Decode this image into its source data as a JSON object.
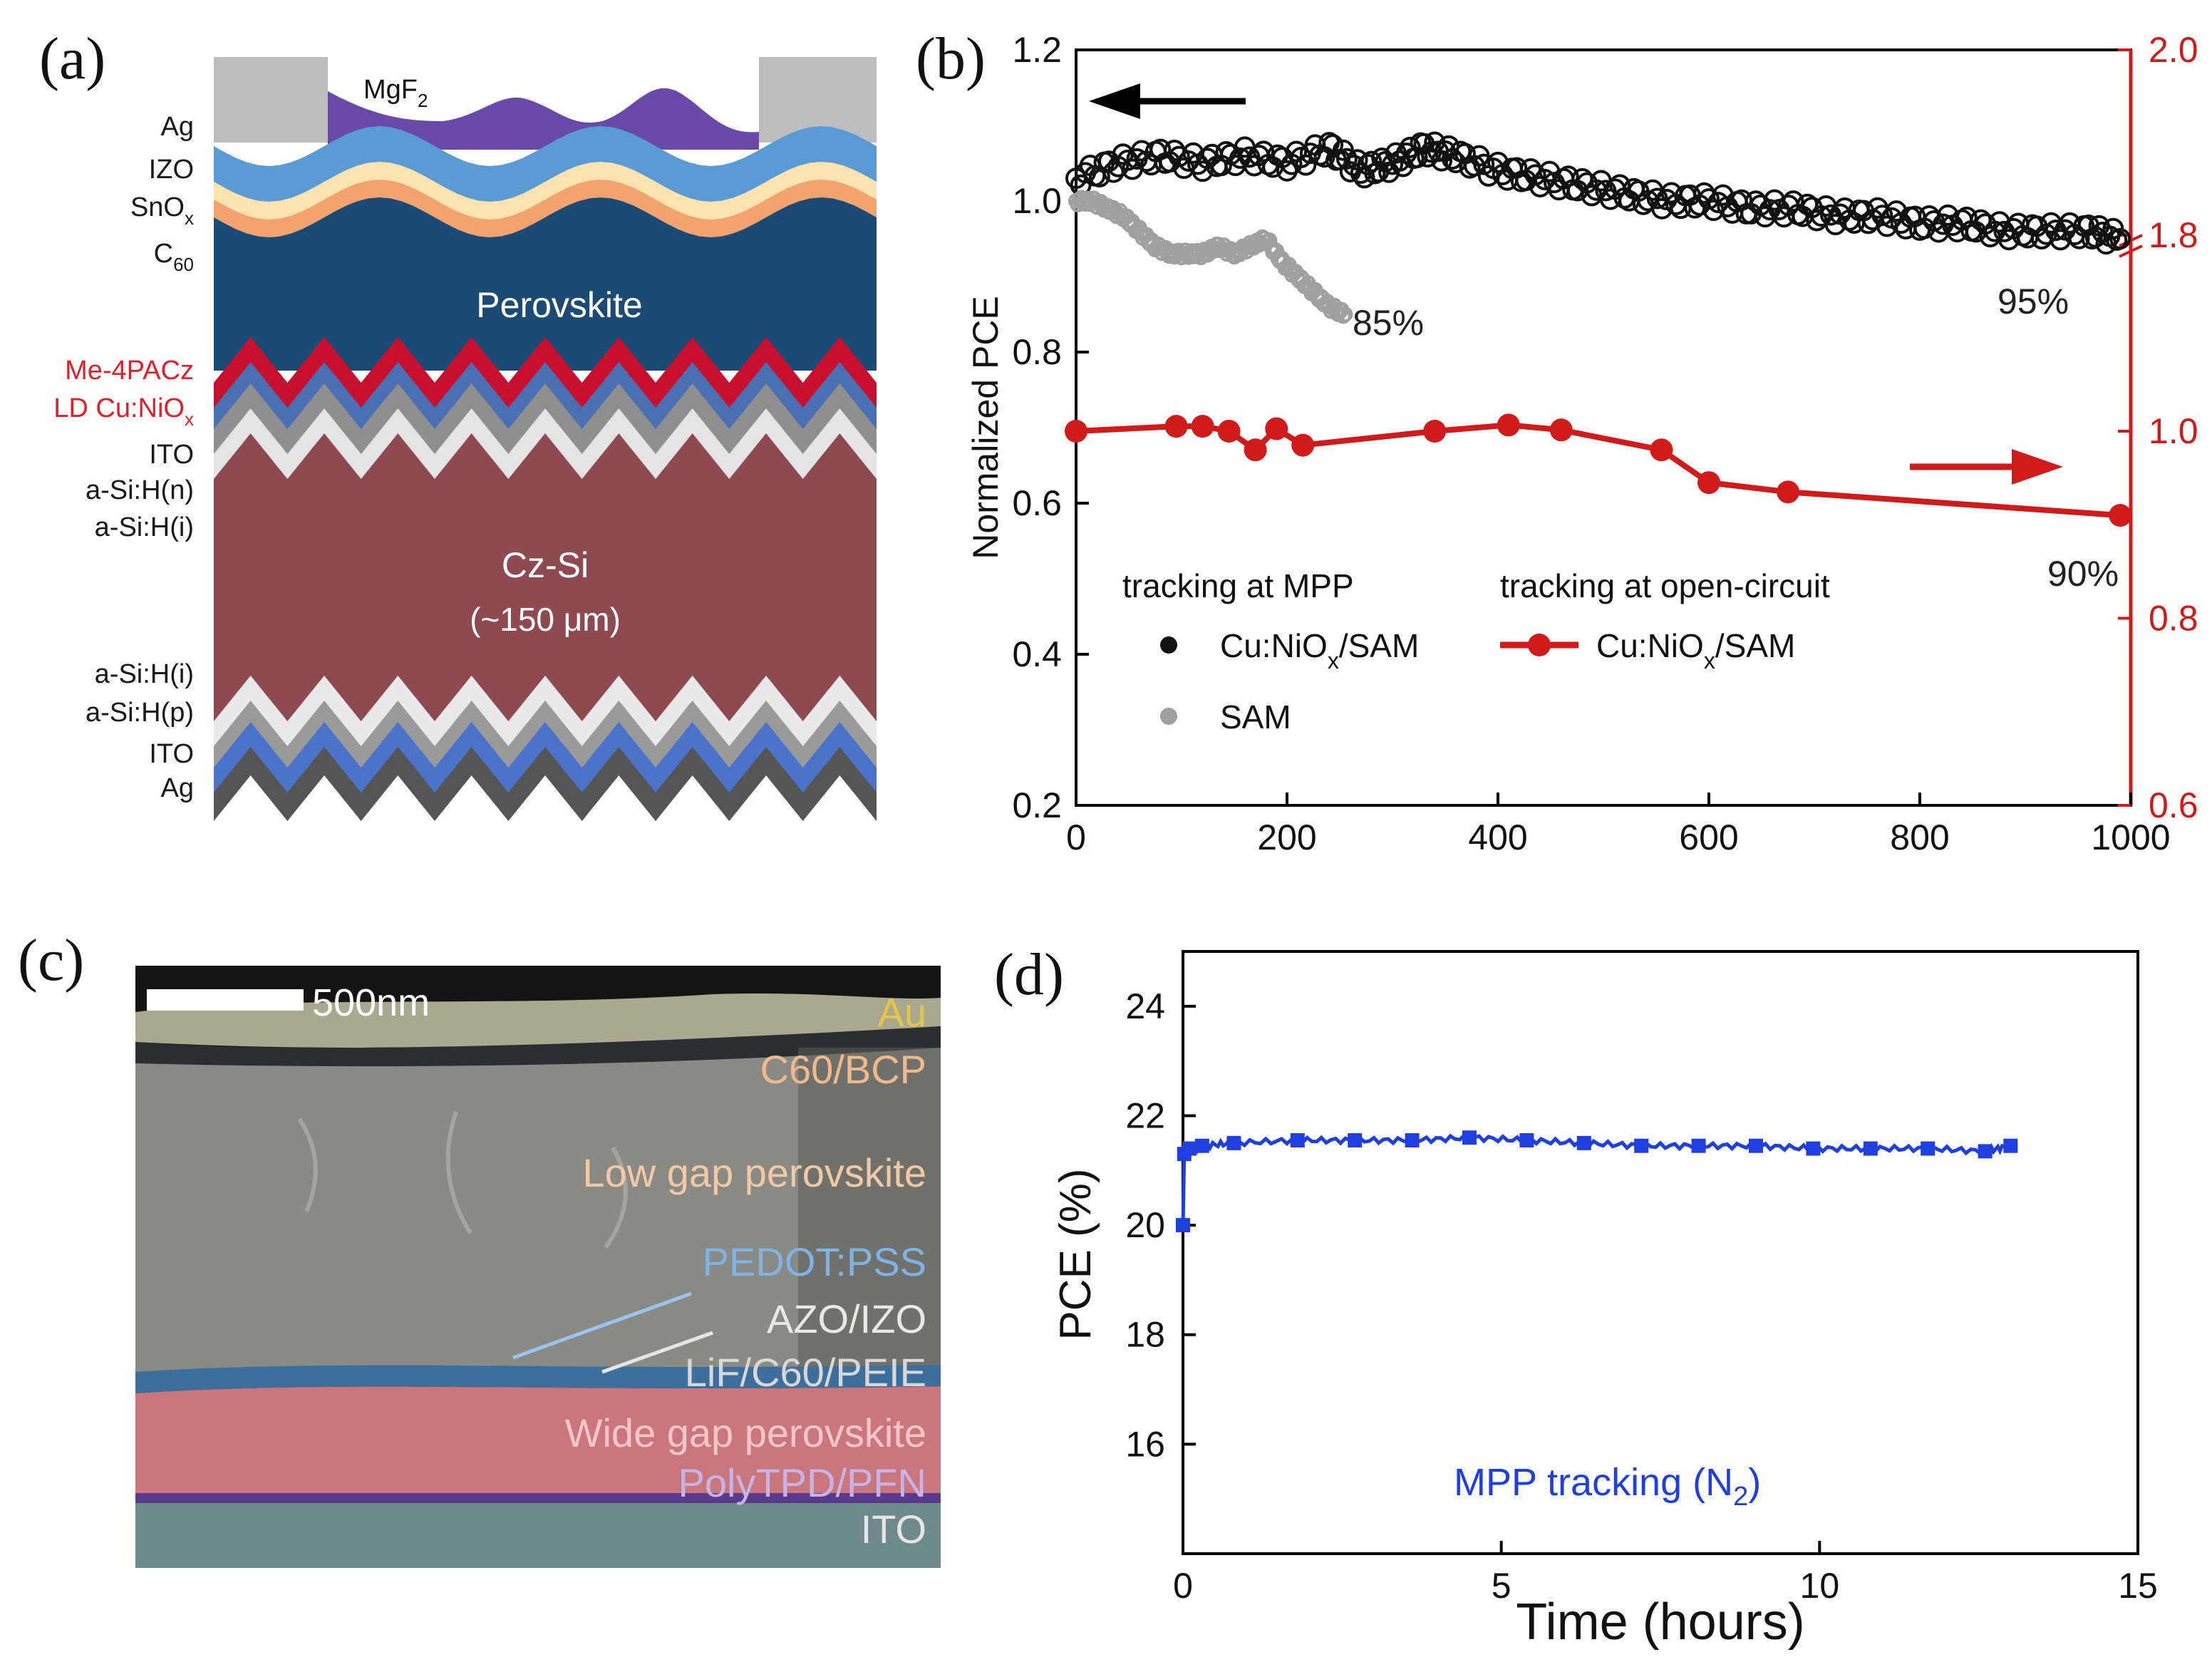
{
  "panels": {
    "a": {
      "label": "(a)",
      "left_labels": [
        {
          "text": "Ag",
          "color": "#1a1a1a"
        },
        {
          "text": "IZO",
          "color": "#1a1a1a"
        },
        {
          "text": "SnO",
          "sub": "x",
          "color": "#1a1a1a"
        },
        {
          "text": "C",
          "sub": "60",
          "color": "#1a1a1a"
        },
        {
          "text": "Me-4PACz",
          "color": "#e0202a"
        },
        {
          "text": "LD Cu:NiO",
          "sub": "x",
          "color": "#e0202a"
        },
        {
          "text": "ITO",
          "color": "#1a1a1a"
        },
        {
          "text": "a-Si:H(n)",
          "color": "#1a1a1a"
        },
        {
          "text": "a-Si:H(i)",
          "color": "#1a1a1a"
        },
        {
          "text": "a-Si:H(i)",
          "color": "#1a1a1a"
        },
        {
          "text": "a-Si:H(p)",
          "color": "#1a1a1a"
        },
        {
          "text": "ITO",
          "color": "#1a1a1a"
        },
        {
          "text": "Ag",
          "color": "#1a1a1a"
        }
      ],
      "mgf2": {
        "text": "MgF",
        "sub": "2"
      },
      "perovskite": "Perovskite",
      "czsi": "Cz-Si",
      "czsi_thick": "(~150 μm)",
      "colors": {
        "ag": "#bdbdbd",
        "mgf2": "#6a4aa8",
        "izo": "#5b9bd5",
        "sno": "#fbe3b0",
        "c60": "#f2a36e",
        "perov": "#1b4b74",
        "me4pacz": "#c8102e",
        "cunio": "#4a6fb3",
        "ito": "#8f8f8f",
        "asi_n": "#e4e4e4",
        "czsi": "#8e4a50",
        "asi_i": "#e9e9e9",
        "asi_p": "#9a9a9a",
        "ito_b": "#4a73c9",
        "ag_b": "#555555"
      }
    },
    "b": {
      "label": "(b)",
      "chart_data": {
        "type": "line",
        "xlabel": "",
        "ylabel": "Normalized PCE",
        "xlim": [
          0,
          1000
        ],
        "ylim": [
          0.2,
          1.2
        ],
        "y2lim": [
          0.6,
          2.0
        ],
        "xticks": [
          "0",
          "200",
          "400",
          "600",
          "800",
          "1000"
        ],
        "yticks": [
          "0.2",
          "0.4",
          "0.6",
          "0.8",
          "1.0",
          "1.2"
        ],
        "y2ticks": [
          "0.6",
          "0.8",
          "1.0",
          "1.8",
          "2.0"
        ],
        "series": [
          {
            "name": "Cu:NiOx/SAM (tracking at MPP)",
            "axis": "left",
            "color": "#111111",
            "x": [
              0,
              40,
              80,
              120,
              160,
              200,
              240,
              270,
              300,
              330,
              360,
              400,
              440,
              480,
              520,
              560,
              600,
              640,
              680,
              720,
              760,
              800,
              840,
              880,
              920,
              960,
              990
            ],
            "y": [
              1.03,
              1.05,
              1.06,
              1.05,
              1.06,
              1.05,
              1.07,
              1.04,
              1.05,
              1.07,
              1.06,
              1.04,
              1.03,
              1.02,
              1.01,
              1.0,
              1.0,
              0.99,
              0.99,
              0.98,
              0.98,
              0.97,
              0.97,
              0.96,
              0.96,
              0.96,
              0.95
            ]
          },
          {
            "name": "SAM (tracking at MPP)",
            "axis": "left",
            "color": "#a0a0a0",
            "x": [
              0,
              15,
              30,
              45,
              60,
              75,
              90,
              105,
              120,
              135,
              150,
              165,
              180,
              195,
              210,
              225,
              240,
              255
            ],
            "y": [
              1.0,
              1.0,
              0.99,
              0.98,
              0.96,
              0.94,
              0.93,
              0.93,
              0.93,
              0.94,
              0.93,
              0.94,
              0.95,
              0.92,
              0.9,
              0.88,
              0.86,
              0.85
            ]
          },
          {
            "name": "Cu:NiOx/SAM (tracking at open-circuit)",
            "axis": "right",
            "color": "#d11a1a",
            "x": [
              0,
              95,
              120,
              145,
              170,
              190,
              215,
              340,
              410,
              460,
              555,
              600,
              675,
              990
            ],
            "y": [
              1.0,
              1.02,
              1.02,
              1.0,
              0.98,
              1.01,
              0.985,
              1.0,
              1.025,
              1.005,
              0.98,
              0.945,
              0.935,
              0.91
            ]
          }
        ],
        "annotations": [
          "85%",
          "95%",
          "90%"
        ],
        "legend": {
          "mpp_title": "tracking at MPP",
          "oc_title": "tracking at open-circuit",
          "cu_label": "Cu:NiO",
          "cu_sub1": "x",
          "cu_rest": "/SAM",
          "sam": "SAM"
        }
      }
    },
    "c": {
      "label": "(c)",
      "scalebar": "500nm",
      "layers": [
        {
          "text": "Au",
          "color": "#e6c54a"
        },
        {
          "text": "C60/BCP",
          "color": "#f0b98c"
        },
        {
          "text": "Low gap perovskite",
          "color": "#f2c9a6"
        },
        {
          "text": "PEDOT:PSS",
          "color": "#7fb3e6"
        },
        {
          "text": "AZO/IZO",
          "color": "#e8e8e8"
        },
        {
          "text": "LiF/C60/PEIE",
          "color": "#d8d8d8"
        },
        {
          "text": "Wide gap perovskite",
          "color": "#f7c6c8"
        },
        {
          "text": "PolyTPD/PFN",
          "color": "#c9b3e6"
        },
        {
          "text": "ITO",
          "color": "#e6e6e6"
        }
      ]
    },
    "d": {
      "label": "(d)",
      "chart_data": {
        "type": "line",
        "xlabel": "Time (hours)",
        "ylabel": "PCE (%)",
        "xlim": [
          0,
          15
        ],
        "ylim": [
          14,
          25
        ],
        "xticks": [
          "0",
          "5",
          "10",
          "15"
        ],
        "yticks": [
          "16",
          "18",
          "20",
          "22",
          "24"
        ],
        "series": [
          {
            "name": "MPP tracking (N2)",
            "color": "#1f3fe0",
            "x": [
              0,
              0.02,
              0.1,
              0.3,
              0.8,
              1.8,
              2.7,
              3.6,
              4.5,
              5.4,
              6.3,
              7.2,
              8.1,
              9.0,
              9.9,
              10.8,
              11.7,
              12.6,
              13.0
            ],
            "y": [
              20.0,
              21.3,
              21.4,
              21.45,
              21.5,
              21.55,
              21.55,
              21.55,
              21.6,
              21.55,
              21.5,
              21.45,
              21.45,
              21.45,
              21.4,
              21.4,
              21.4,
              21.35,
              21.45
            ]
          }
        ],
        "annotation": {
          "text": "MPP tracking (N",
          "sub": "2",
          "close": ")"
        }
      }
    }
  }
}
